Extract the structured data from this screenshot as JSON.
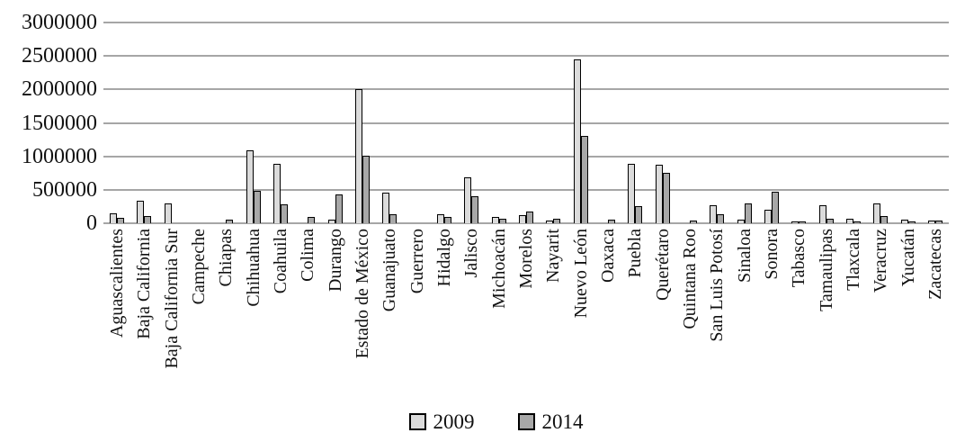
{
  "chart_data": {
    "type": "bar",
    "title": "",
    "xlabel": "",
    "ylabel": "",
    "ylim": [
      0,
      3000000
    ],
    "yticks": [
      0,
      500000,
      1000000,
      1500000,
      2000000,
      2500000,
      3000000
    ],
    "ytick_labels": [
      "0",
      "500000",
      "1000000",
      "1500000",
      "2000000",
      "2500000",
      "3000000"
    ],
    "grid": true,
    "legend_position": "bottom",
    "gridline_color": "#a6a6a6",
    "bar_border_color": "#000000",
    "categories": [
      "Aguascalientes",
      "Baja California",
      "Baja California Sur",
      "Campeche",
      "Chiapas",
      "Chihuahua",
      "Coahuila",
      "Colima",
      "Durango",
      "Estado de México",
      "Guanajuato",
      "Guerrero",
      "Hidalgo",
      "Jalisco",
      "Michoacán",
      "Morelos",
      "Nayarit",
      "Nuevo León",
      "Oaxaca",
      "Puebla",
      "Querétaro",
      "Quintana Roo",
      "San Luis Potosí",
      "Sinaloa",
      "Sonora",
      "Tabasco",
      "Tamaulipas",
      "Tlaxcala",
      "Veracruz",
      "Yucatán",
      "Zacatecas"
    ],
    "series": [
      {
        "name": "2009",
        "color": "#dbdbdb",
        "values": [
          150000,
          340000,
          290000,
          0,
          0,
          1090000,
          890000,
          0,
          50000,
          2000000,
          460000,
          0,
          140000,
          680000,
          100000,
          120000,
          35000,
          2450000,
          0,
          890000,
          870000,
          0,
          270000,
          60000,
          200000,
          30000,
          270000,
          70000,
          300000,
          60000,
          35000
        ]
      },
      {
        "name": "2014",
        "color": "#a8a8a8",
        "values": [
          80000,
          110000,
          0,
          0,
          50000,
          490000,
          280000,
          90000,
          430000,
          1010000,
          140000,
          0,
          95000,
          400000,
          70000,
          170000,
          65000,
          1300000,
          50000,
          250000,
          750000,
          45000,
          140000,
          290000,
          470000,
          30000,
          70000,
          30000,
          110000,
          30000,
          45000
        ]
      }
    ]
  }
}
